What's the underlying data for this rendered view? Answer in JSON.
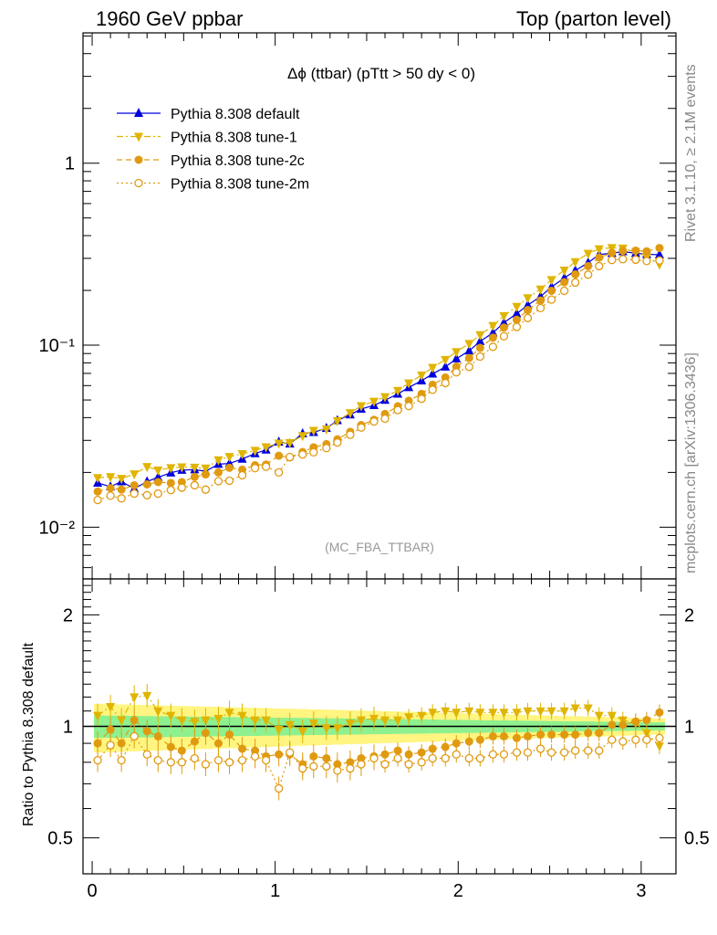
{
  "header": {
    "left": "1960 GeV ppbar",
    "right": "Top (parton level)"
  },
  "side": {
    "rivet": "Rivet 3.1.10, ≥ 2.1M events",
    "mcplots": "mcplots.cern.ch [arXiv:1306.3436]"
  },
  "chart_data": [
    {
      "type": "line",
      "title": "Δϕ (ttbar) (pTtt > 50 dy < 0)",
      "watermark": "(MC_FBA_TTBAR)",
      "xlabel": "",
      "ylabel": "",
      "yscale": "log",
      "xlim": [
        -0.05,
        3.19
      ],
      "ylim": [
        0.0052,
        5.2
      ],
      "xticks": [
        "0",
        "1",
        "2",
        "3"
      ],
      "yticks": [
        "10⁻²",
        "10⁻¹",
        "1"
      ],
      "legend_position": "top-left",
      "x": [
        0.03,
        0.1,
        0.16,
        0.23,
        0.3,
        0.36,
        0.43,
        0.49,
        0.56,
        0.62,
        0.69,
        0.75,
        0.82,
        0.89,
        0.95,
        1.02,
        1.08,
        1.15,
        1.21,
        1.28,
        1.34,
        1.41,
        1.47,
        1.54,
        1.6,
        1.67,
        1.73,
        1.8,
        1.86,
        1.93,
        1.99,
        2.06,
        2.12,
        2.19,
        2.25,
        2.32,
        2.38,
        2.45,
        2.51,
        2.58,
        2.64,
        2.71,
        2.77,
        2.84,
        2.9,
        2.97,
        3.03,
        3.1
      ],
      "series": [
        {
          "name": "Pythia 8.308 default",
          "color": "#0000dd",
          "marker": "triangle-up",
          "line": "solid",
          "values": [
            0.0175,
            0.0167,
            0.0178,
            0.0163,
            0.0178,
            0.0188,
            0.0199,
            0.0206,
            0.0207,
            0.0203,
            0.0222,
            0.0224,
            0.0237,
            0.0254,
            0.0266,
            0.0294,
            0.0287,
            0.0327,
            0.0332,
            0.035,
            0.0386,
            0.0415,
            0.0446,
            0.0467,
            0.0499,
            0.0539,
            0.0586,
            0.0638,
            0.0695,
            0.076,
            0.0843,
            0.0931,
            0.105,
            0.117,
            0.133,
            0.149,
            0.166,
            0.185,
            0.209,
            0.234,
            0.257,
            0.284,
            0.315,
            0.32,
            0.327,
            0.32,
            0.316,
            0.314
          ]
        },
        {
          "name": "Pythia 8.308 tune-1",
          "color": "#e0b400",
          "marker": "triangle-down",
          "line": "dashdot",
          "values": [
            0.0187,
            0.0189,
            0.0185,
            0.0196,
            0.0215,
            0.0206,
            0.0212,
            0.0214,
            0.0213,
            0.0211,
            0.0234,
            0.0244,
            0.0253,
            0.0264,
            0.0276,
            0.0289,
            0.0291,
            0.0318,
            0.034,
            0.0346,
            0.0384,
            0.0425,
            0.0464,
            0.0491,
            0.052,
            0.0563,
            0.062,
            0.0684,
            0.0754,
            0.0833,
            0.092,
            0.102,
            0.114,
            0.128,
            0.145,
            0.163,
            0.182,
            0.203,
            0.229,
            0.258,
            0.287,
            0.319,
            0.338,
            0.343,
            0.341,
            0.326,
            0.305,
            0.278
          ]
        },
        {
          "name": "Pythia 8.308 tune-2c",
          "color": "#e09a10",
          "marker": "circle",
          "line": "dashed",
          "values": [
            0.0157,
            0.0164,
            0.0161,
            0.017,
            0.0172,
            0.0177,
            0.0175,
            0.0177,
            0.0189,
            0.0195,
            0.02,
            0.0212,
            0.0207,
            0.0219,
            0.0221,
            0.0247,
            0.0242,
            0.0259,
            0.0275,
            0.0286,
            0.0304,
            0.0334,
            0.0364,
            0.0389,
            0.0419,
            0.0462,
            0.0495,
            0.054,
            0.0606,
            0.0665,
            0.0763,
            0.085,
            0.0967,
            0.11,
            0.125,
            0.138,
            0.156,
            0.176,
            0.199,
            0.222,
            0.245,
            0.272,
            0.303,
            0.322,
            0.33,
            0.331,
            0.328,
            0.342
          ]
        },
        {
          "name": "Pythia 8.308 tune-2m",
          "color": "#e09a10",
          "marker": "circle-open",
          "line": "dotted",
          "values": [
            0.0141,
            0.0149,
            0.0144,
            0.0153,
            0.015,
            0.0153,
            0.016,
            0.0165,
            0.017,
            0.0161,
            0.0179,
            0.018,
            0.0193,
            0.0211,
            0.0215,
            0.02,
            0.0243,
            0.0251,
            0.0258,
            0.0272,
            0.0292,
            0.0322,
            0.0353,
            0.0381,
            0.0395,
            0.044,
            0.0463,
            0.0508,
            0.0569,
            0.062,
            0.071,
            0.076,
            0.0866,
            0.098,
            0.112,
            0.126,
            0.141,
            0.16,
            0.178,
            0.199,
            0.221,
            0.244,
            0.272,
            0.294,
            0.297,
            0.295,
            0.29,
            0.292
          ]
        }
      ]
    },
    {
      "type": "line",
      "xlabel": "",
      "ylabel": "Ratio to Pythia 8.308 default",
      "yscale": "log",
      "xlim": [
        -0.05,
        3.19
      ],
      "ylim": [
        0.4,
        2.5
      ],
      "xticks": [
        "0",
        "1",
        "2",
        "3"
      ],
      "yticks": [
        "0.5",
        "1",
        "2"
      ],
      "bands": [
        {
          "name": "yellow-band",
          "color": "#fff580",
          "half_width_start": 0.15,
          "half_width_end": 0.05
        },
        {
          "name": "green-band",
          "color": "#8ff08f",
          "half_width_start": 0.07,
          "half_width_end": 0.025
        }
      ],
      "series": [
        {
          "name": "Pythia 8.308 default",
          "color": "#000000",
          "values": [
            1,
            1,
            1,
            1,
            1,
            1,
            1,
            1,
            1,
            1,
            1,
            1,
            1,
            1,
            1,
            1,
            1,
            1,
            1,
            1,
            1,
            1,
            1,
            1,
            1,
            1,
            1,
            1,
            1,
            1,
            1,
            1,
            1,
            1,
            1,
            1,
            1,
            1,
            1,
            1,
            1,
            1,
            1,
            1,
            1,
            1,
            1,
            1
          ]
        },
        {
          "name": "Pythia 8.308 tune-1",
          "color": "#e0b400",
          "values": [
            1.07,
            1.13,
            1.04,
            1.2,
            1.21,
            1.1,
            1.07,
            1.04,
            1.03,
            1.04,
            1.05,
            1.09,
            1.07,
            1.04,
            1.04,
            0.98,
            1.01,
            0.97,
            1.02,
            0.99,
            0.99,
            1.02,
            1.04,
            1.05,
            1.04,
            1.04,
            1.06,
            1.07,
            1.09,
            1.1,
            1.09,
            1.1,
            1.09,
            1.09,
            1.09,
            1.09,
            1.1,
            1.1,
            1.1,
            1.1,
            1.12,
            1.12,
            1.07,
            1.07,
            1.04,
            1.02,
            0.96,
            0.885
          ]
        },
        {
          "name": "Pythia 8.308 tune-2c",
          "color": "#e09a10",
          "values": [
            0.9,
            0.98,
            0.9,
            1.04,
            0.97,
            0.94,
            0.88,
            0.86,
            0.91,
            0.96,
            0.9,
            0.95,
            0.87,
            0.86,
            0.83,
            0.84,
            0.84,
            0.79,
            0.83,
            0.82,
            0.79,
            0.8,
            0.82,
            0.83,
            0.84,
            0.86,
            0.84,
            0.85,
            0.87,
            0.88,
            0.9,
            0.91,
            0.92,
            0.94,
            0.94,
            0.93,
            0.94,
            0.95,
            0.95,
            0.95,
            0.95,
            0.96,
            0.96,
            1.01,
            1.01,
            1.03,
            1.04,
            1.09
          ]
        },
        {
          "name": "Pythia 8.308 tune-2m",
          "color": "#e09a10",
          "values": [
            0.81,
            0.89,
            0.81,
            0.94,
            0.84,
            0.81,
            0.8,
            0.8,
            0.82,
            0.79,
            0.81,
            0.8,
            0.81,
            0.83,
            0.81,
            0.68,
            0.85,
            0.77,
            0.78,
            0.78,
            0.76,
            0.77,
            0.79,
            0.82,
            0.79,
            0.82,
            0.79,
            0.8,
            0.82,
            0.82,
            0.84,
            0.82,
            0.82,
            0.84,
            0.84,
            0.85,
            0.85,
            0.87,
            0.85,
            0.85,
            0.86,
            0.86,
            0.86,
            0.92,
            0.91,
            0.92,
            0.92,
            0.93
          ]
        }
      ]
    }
  ]
}
